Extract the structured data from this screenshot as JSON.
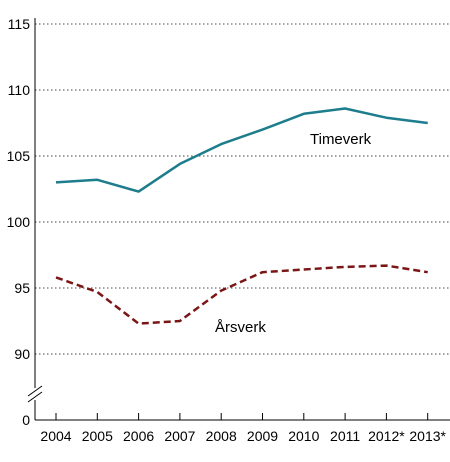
{
  "chart_data": {
    "type": "line",
    "categories": [
      "2004",
      "2005",
      "2006",
      "2007",
      "2008",
      "2009",
      "2010",
      "2011",
      "2012*",
      "2013*"
    ],
    "series": [
      {
        "name": "Timeverk",
        "color": "#1d7d8c",
        "style": "solid",
        "values": [
          103.0,
          103.2,
          102.3,
          104.4,
          105.9,
          107.0,
          108.2,
          108.6,
          107.9,
          107.5
        ]
      },
      {
        "name": "Årsverk",
        "color": "#7a1616",
        "style": "dashed",
        "values": [
          95.8,
          94.7,
          92.3,
          92.5,
          94.8,
          96.2,
          96.4,
          96.6,
          96.7,
          96.2
        ]
      }
    ],
    "y_ticks": [
      "115",
      "110",
      "105",
      "100",
      "95",
      "90"
    ],
    "y_zero_label": "0",
    "ylim": [
      90,
      115
    ],
    "axis_break": true,
    "grid": "horizontal dotted"
  }
}
